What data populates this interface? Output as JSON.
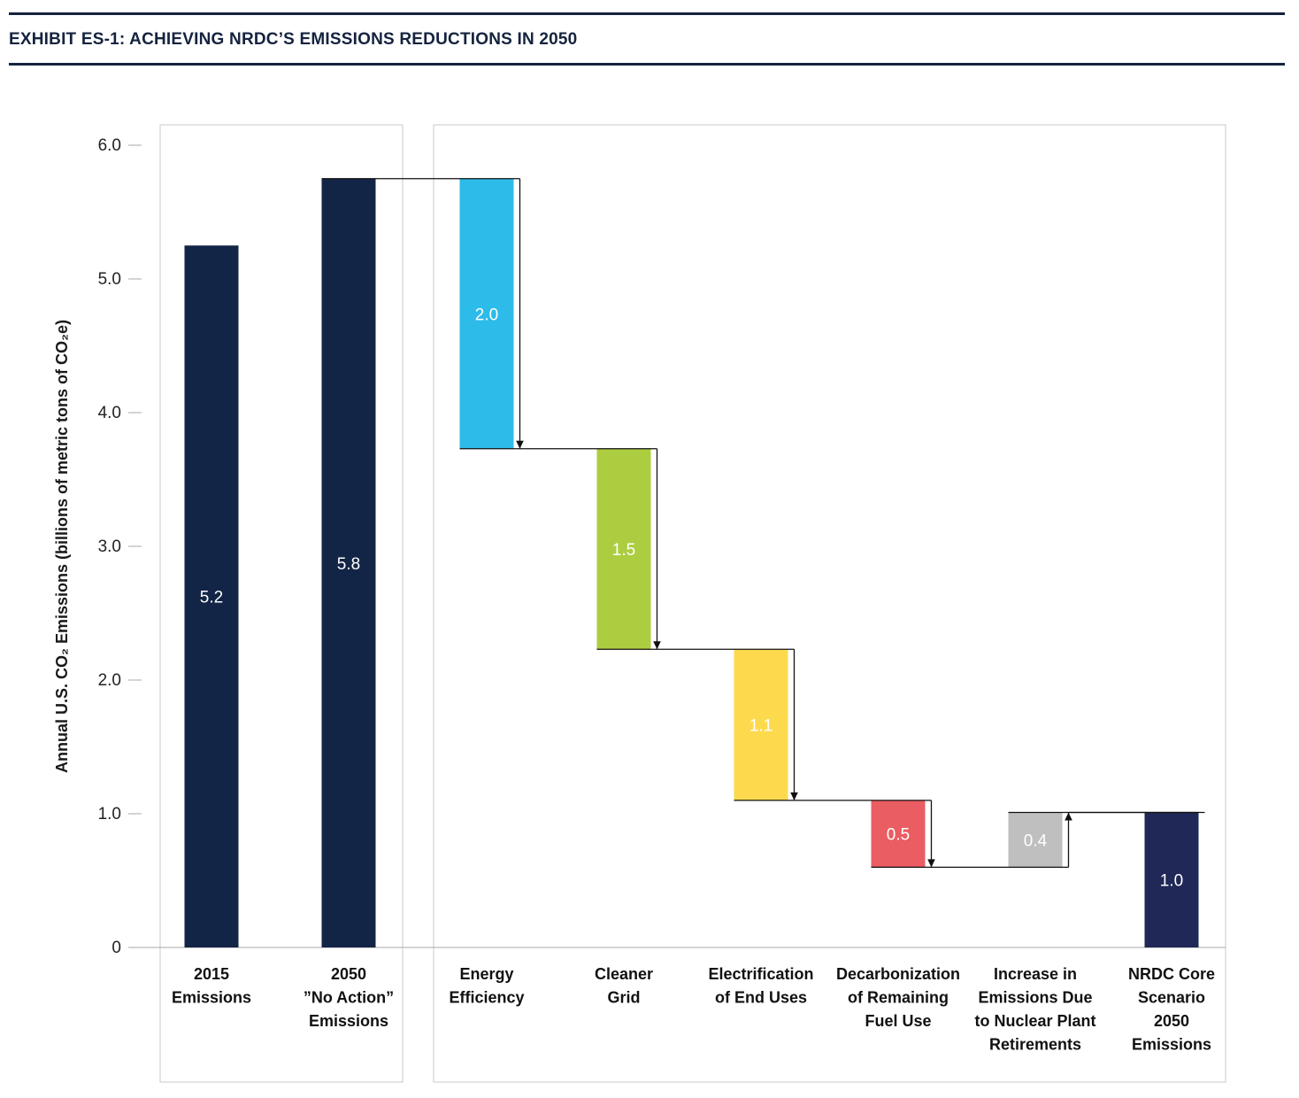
{
  "header": {
    "title": "EXHIBIT ES-1: ACHIEVING NRDC’S EMISSIONS REDUCTIONS IN 2050"
  },
  "chart_data": {
    "type": "waterfall",
    "title": "EXHIBIT ES-1: ACHIEVING NRDC’S EMISSIONS REDUCTIONS IN 2050",
    "ylabel": "Annual U.S. CO₂ Emissions (billions of metric tons of CO₂e)",
    "ylim": [
      0,
      6.0
    ],
    "yticks": [
      "0",
      "1.0",
      "2.0",
      "3.0",
      "4.0",
      "5.0",
      "6.0"
    ],
    "grid": false,
    "categories": [
      [
        "2015",
        "Emissions"
      ],
      [
        "2050",
        "”No Action”",
        "Emissions"
      ],
      [
        "Energy",
        "Efficiency"
      ],
      [
        "Cleaner",
        "Grid"
      ],
      [
        "Electrification",
        "of End Uses"
      ],
      [
        "Decarbonization",
        "of Remaining",
        "Fuel Use"
      ],
      [
        "Increase in",
        "Emissions Due",
        "to Nuclear Plant",
        "Retirements"
      ],
      [
        "NRDC Core",
        "Scenario",
        "2050",
        "Emissions"
      ]
    ],
    "bars": [
      {
        "kind": "total",
        "start": 0,
        "end": 5.25,
        "label": "5.2",
        "color": "#132546"
      },
      {
        "kind": "total",
        "start": 0,
        "end": 5.75,
        "label": "5.8",
        "color": "#132546"
      },
      {
        "kind": "decrease",
        "start": 5.75,
        "end": 3.73,
        "label": "2.0",
        "color": "#2dbbe9"
      },
      {
        "kind": "decrease",
        "start": 3.73,
        "end": 2.23,
        "label": "1.5",
        "color": "#adcd41"
      },
      {
        "kind": "decrease",
        "start": 2.23,
        "end": 1.1,
        "label": "1.1",
        "color": "#fdda4d"
      },
      {
        "kind": "decrease",
        "start": 1.1,
        "end": 0.6,
        "label": "0.5",
        "color": "#ea5d62"
      },
      {
        "kind": "increase",
        "start": 0.6,
        "end": 1.01,
        "label": "0.4",
        "color": "#bfbfbf"
      },
      {
        "kind": "total",
        "start": 0,
        "end": 1.01,
        "label": "1.0",
        "color": "#1f2856"
      }
    ]
  }
}
